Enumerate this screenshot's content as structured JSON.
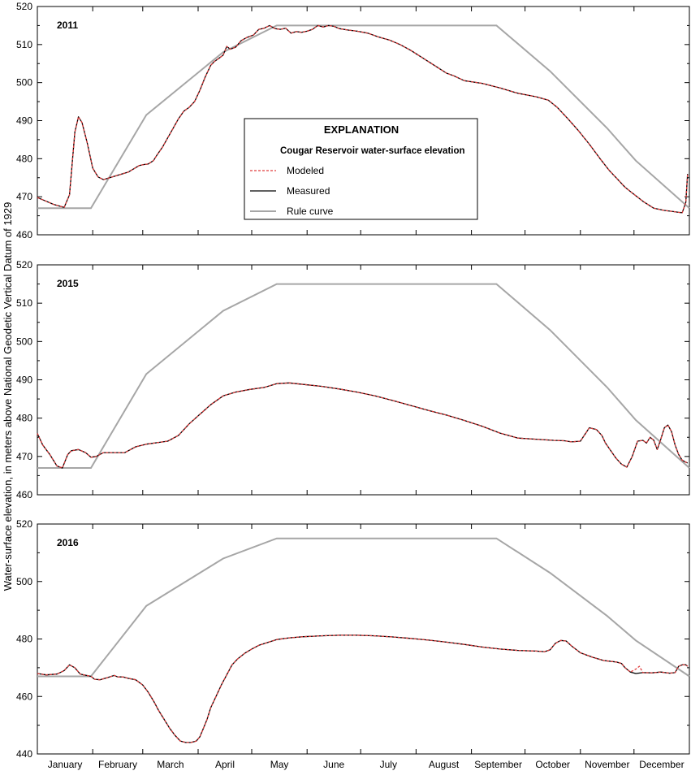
{
  "chart_data": {
    "type": "line",
    "ylabel": "Water-surface elevation, in meters above National Geodetic Vertical Datum of 1929",
    "x_categories": [
      "January",
      "February",
      "March",
      "April",
      "May",
      "June",
      "July",
      "August",
      "September",
      "October",
      "November",
      "December"
    ],
    "x_unit": "day of year",
    "legend": {
      "title": "EXPLANATION",
      "subtitle": "Cougar Reservoir water-surface elevation",
      "items": [
        {
          "label": "Modeled",
          "color": "#e03c3c",
          "style": "dashed"
        },
        {
          "label": "Measured",
          "color": "#000000",
          "style": "solid"
        },
        {
          "label": "Rule curve",
          "color": "#a6a6a6",
          "style": "solid"
        }
      ],
      "placement": "center of top panel"
    },
    "colors": {
      "modeled": "#e03c3c",
      "measured": "#000000",
      "rule_curve": "#a6a6a6"
    },
    "rule_curve": {
      "x": [
        1,
        31,
        62,
        105,
        135,
        258,
        288,
        320,
        336,
        366
      ],
      "y": [
        467,
        467,
        491.5,
        508,
        515,
        515,
        503,
        488,
        479.5,
        467
      ]
    },
    "panels": [
      {
        "year": "2011",
        "ylim": [
          460,
          520
        ],
        "yticks": [
          460,
          470,
          480,
          490,
          500,
          510,
          520
        ],
        "measured": {
          "x": [
            1,
            5,
            10,
            16,
            19,
            22,
            24,
            26,
            29,
            32,
            35,
            38,
            45,
            52,
            58,
            61,
            63,
            66,
            68,
            71,
            74,
            77,
            80,
            83,
            86,
            89,
            92,
            95,
            98,
            100,
            103,
            105,
            107,
            109,
            112,
            115,
            118,
            122,
            125,
            128,
            131,
            134,
            137,
            140,
            143,
            146,
            149,
            152,
            155,
            158,
            161,
            164,
            167,
            170,
            175,
            180,
            186,
            192,
            198,
            204,
            210,
            215,
            220,
            225,
            230,
            234,
            240,
            250,
            260,
            270,
            280,
            287,
            292,
            298,
            304,
            310,
            316,
            321,
            324,
            327,
            330,
            334,
            340,
            346,
            352,
            357,
            360,
            362,
            364,
            365
          ],
          "y": [
            469.8,
            469,
            468,
            467.2,
            470.5,
            487,
            491,
            489.5,
            484,
            477.5,
            475.2,
            474.5,
            475.5,
            476.5,
            478.2,
            478.5,
            478.6,
            479.5,
            481,
            483,
            485.5,
            488,
            490.5,
            492.5,
            493.5,
            495,
            498,
            501.5,
            504.5,
            505.5,
            506.5,
            507.2,
            509.5,
            508.8,
            509.3,
            511,
            511.8,
            512.5,
            514,
            514.3,
            515,
            514.2,
            514,
            514.3,
            513,
            513.4,
            513.2,
            513.5,
            514,
            515,
            514.6,
            515,
            514.8,
            514.2,
            513.8,
            513.5,
            513,
            512,
            511.2,
            510,
            508.5,
            507,
            505.5,
            504,
            502.5,
            501.8,
            500.5,
            499.8,
            498.6,
            497.2,
            496.3,
            495.4,
            493.5,
            490.5,
            487.3,
            483.8,
            480,
            477,
            475.5,
            474,
            472.5,
            471,
            468.8,
            467,
            466.4,
            466.1,
            465.9,
            465.8,
            468.5,
            476
          ]
        },
        "modeled": {
          "x": [
            1,
            5,
            10,
            16,
            19,
            22,
            24,
            26,
            29,
            32,
            35,
            38,
            45,
            52,
            58,
            61,
            63,
            66,
            68,
            71,
            74,
            77,
            80,
            83,
            86,
            89,
            92,
            95,
            98,
            100,
            103,
            105,
            107,
            109,
            112,
            115,
            118,
            122,
            125,
            128,
            131,
            134,
            137,
            140,
            143,
            146,
            149,
            152,
            155,
            158,
            161,
            164,
            167,
            170,
            175,
            180,
            186,
            192,
            198,
            204,
            210,
            215,
            220,
            225,
            230,
            234,
            240,
            250,
            260,
            270,
            280,
            287,
            292,
            298,
            304,
            310,
            316,
            321,
            324,
            327,
            330,
            334,
            340,
            346,
            352,
            357,
            360,
            362,
            364,
            365
          ],
          "y": [
            469.8,
            469,
            468,
            467.2,
            470.5,
            487,
            491,
            489.5,
            484,
            477.5,
            475.2,
            474.5,
            475.5,
            476.5,
            478.2,
            478.5,
            478.6,
            479.5,
            481,
            483,
            485.5,
            488,
            490.5,
            492.5,
            493.5,
            495,
            498,
            501.5,
            504.5,
            505.5,
            506.5,
            507.2,
            509.5,
            508.8,
            509.3,
            511,
            511.8,
            512.5,
            514,
            514.3,
            515,
            514.2,
            514,
            514.3,
            513,
            513.4,
            513.2,
            513.5,
            514,
            515,
            514.6,
            515,
            514.8,
            514.2,
            513.8,
            513.5,
            513,
            512,
            511.2,
            510,
            508.5,
            507,
            505.5,
            504,
            502.5,
            501.8,
            500.5,
            499.8,
            498.6,
            497.2,
            496.3,
            495.4,
            493.5,
            490.5,
            487.3,
            483.8,
            480,
            477,
            475.5,
            474,
            472.5,
            471,
            468.8,
            467,
            466.4,
            466.1,
            465.9,
            465.8,
            468.5,
            476
          ]
        }
      },
      {
        "year": "2015",
        "ylim": [
          460,
          520
        ],
        "yticks": [
          460,
          470,
          480,
          490,
          500,
          510,
          520
        ],
        "measured": {
          "x": [
            1,
            4,
            8,
            12,
            15,
            18,
            20,
            24,
            28,
            31,
            34,
            38,
            44,
            50,
            56,
            62,
            68,
            74,
            80,
            86,
            92,
            98,
            105,
            112,
            120,
            128,
            135,
            142,
            150,
            160,
            170,
            180,
            190,
            200,
            210,
            220,
            230,
            240,
            250,
            260,
            270,
            280,
            290,
            296,
            300,
            305,
            310,
            314,
            317,
            319,
            322,
            325,
            328,
            331,
            334,
            337,
            340,
            342,
            344,
            346,
            348,
            350,
            352,
            354,
            356,
            358,
            360,
            362,
            364,
            365
          ],
          "y": [
            476,
            473,
            470.5,
            467.5,
            467,
            470.5,
            471.5,
            471.8,
            471,
            469.8,
            470,
            471,
            471,
            471,
            472.5,
            473.2,
            473.6,
            474,
            475.5,
            478.5,
            481,
            483.5,
            485.8,
            486.8,
            487.5,
            488,
            489,
            489.2,
            488.8,
            488.3,
            487.6,
            486.8,
            485.8,
            484.6,
            483.3,
            482,
            480.8,
            479.4,
            477.9,
            476.1,
            474.8,
            474.5,
            474.2,
            474.1,
            473.8,
            474,
            477.5,
            477,
            475.5,
            473.5,
            471.5,
            469.5,
            468,
            467.2,
            470,
            474,
            474.2,
            473.5,
            475,
            474.3,
            471.8,
            474.5,
            477.5,
            478.2,
            476.5,
            473,
            470.5,
            469,
            468.5,
            468.3
          ]
        },
        "modeled": {
          "x": [
            1,
            4,
            8,
            12,
            15,
            18,
            20,
            24,
            28,
            31,
            34,
            38,
            44,
            50,
            56,
            62,
            68,
            74,
            80,
            86,
            92,
            98,
            105,
            112,
            120,
            128,
            135,
            142,
            150,
            160,
            170,
            180,
            190,
            200,
            210,
            220,
            230,
            240,
            250,
            260,
            270,
            280,
            290,
            296,
            300,
            305,
            310,
            314,
            317,
            319,
            322,
            325,
            328,
            331,
            334,
            337,
            340,
            342,
            344,
            346,
            348,
            350,
            352,
            354,
            356,
            358,
            360,
            362,
            364,
            365
          ],
          "y": [
            476,
            473,
            470.5,
            467.5,
            467,
            470.5,
            471.5,
            471.8,
            471,
            469.8,
            470,
            471,
            471,
            471,
            472.5,
            473.2,
            473.6,
            474,
            475.5,
            478.5,
            481,
            483.5,
            485.8,
            486.8,
            487.5,
            488,
            489,
            489.2,
            488.8,
            488.3,
            487.6,
            486.8,
            485.8,
            484.6,
            483.3,
            482,
            480.8,
            479.4,
            477.9,
            476.1,
            474.8,
            474.5,
            474.2,
            474.1,
            473.8,
            474,
            477.5,
            477,
            475.5,
            473.5,
            471.5,
            469.5,
            468,
            467.2,
            470,
            474,
            474.2,
            473.5,
            475,
            474.3,
            471.8,
            474.5,
            477.5,
            478.2,
            476.5,
            473,
            470.5,
            469,
            468.5,
            468.3
          ]
        }
      },
      {
        "year": "2016",
        "ylim": [
          440,
          520
        ],
        "yticks": [
          440,
          460,
          480,
          500,
          520
        ],
        "measured": {
          "x": [
            1,
            6,
            12,
            16,
            19,
            22,
            25,
            28,
            31,
            33,
            36,
            40,
            44,
            46,
            49,
            52,
            56,
            60,
            63,
            66,
            69,
            72,
            75,
            78,
            81,
            84,
            87,
            90,
            92,
            94,
            96,
            98,
            101,
            104,
            107,
            110,
            113,
            117,
            121,
            125,
            130,
            135,
            142,
            150,
            160,
            170,
            180,
            190,
            200,
            210,
            220,
            230,
            240,
            250,
            260,
            270,
            280,
            285,
            288,
            291,
            294,
            297,
            300,
            305,
            312,
            318,
            325,
            328,
            330,
            333,
            336,
            340,
            345,
            350,
            355,
            358,
            360,
            362,
            364,
            365
          ],
          "y": [
            468,
            467.5,
            467.8,
            469,
            471,
            470,
            467.8,
            467.4,
            467,
            466,
            465.8,
            466.5,
            467.3,
            466.8,
            466.8,
            466.3,
            465.8,
            464,
            461.5,
            458.5,
            455,
            452,
            449,
            446.5,
            444.5,
            444,
            444,
            444.5,
            446,
            449,
            452,
            456,
            460,
            464,
            467.5,
            471,
            473,
            475,
            476.5,
            477.8,
            478.8,
            479.8,
            480.4,
            480.8,
            481.1,
            481.3,
            481.3,
            481.1,
            480.7,
            480.2,
            479.6,
            478.9,
            478.1,
            477.2,
            476.5,
            476,
            475.8,
            475.6,
            476.2,
            478.5,
            479.5,
            479.3,
            477.6,
            475.2,
            473.6,
            472.5,
            472,
            471.5,
            470,
            468.5,
            468,
            468.3,
            468.2,
            468.5,
            468.1,
            468.3,
            470.5,
            471,
            471,
            470.5
          ]
        },
        "modeled": {
          "x": [
            1,
            6,
            12,
            16,
            19,
            22,
            25,
            28,
            31,
            33,
            36,
            40,
            44,
            46,
            49,
            52,
            56,
            60,
            63,
            66,
            69,
            72,
            75,
            78,
            81,
            84,
            87,
            90,
            92,
            94,
            96,
            98,
            101,
            104,
            107,
            110,
            113,
            117,
            121,
            125,
            130,
            135,
            142,
            150,
            160,
            170,
            180,
            190,
            200,
            210,
            220,
            230,
            240,
            250,
            260,
            270,
            280,
            285,
            288,
            291,
            294,
            297,
            300,
            305,
            312,
            318,
            325,
            328,
            330,
            333,
            336,
            338,
            340,
            345,
            350,
            355,
            358,
            360,
            362,
            364,
            365
          ],
          "y": [
            468,
            467.5,
            467.8,
            469,
            471,
            470,
            467.8,
            467.4,
            467,
            466,
            465.8,
            466.5,
            467.3,
            466.8,
            466.8,
            466.3,
            465.8,
            464,
            461.5,
            458.5,
            455,
            452,
            449,
            446.5,
            444.5,
            444,
            444,
            444.5,
            446,
            449,
            452,
            456,
            460,
            464,
            467.5,
            471,
            473,
            475,
            476.5,
            477.8,
            478.8,
            479.8,
            480.4,
            480.8,
            481.1,
            481.3,
            481.3,
            481.1,
            480.7,
            480.2,
            479.6,
            478.9,
            478.1,
            477.2,
            476.5,
            476,
            475.8,
            475.6,
            476.2,
            478.5,
            479.5,
            479.3,
            477.6,
            475.2,
            473.6,
            472.5,
            472,
            471.5,
            470,
            468.5,
            469.5,
            470.5,
            468.3,
            468.2,
            468.5,
            468.1,
            468.3,
            470.5,
            471,
            471,
            470.5
          ]
        }
      }
    ]
  }
}
